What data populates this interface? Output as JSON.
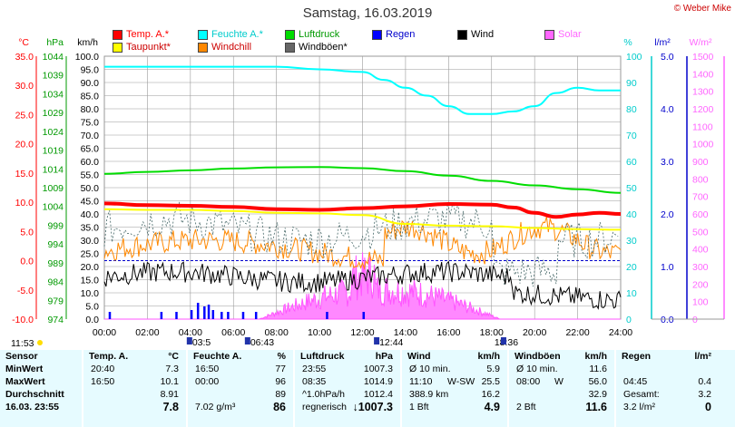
{
  "title": "Samstag, 16.03.2019",
  "copyright": "© Weber Mike",
  "legend": [
    {
      "label": "Temp. A.*",
      "color": "#ff0000",
      "text_color": "#ff0000"
    },
    {
      "label": "Feuchte A.*",
      "color": "#00ffff",
      "text_color": "#00cccc"
    },
    {
      "label": "Luftdruck",
      "color": "#00dd00",
      "text_color": "#009900"
    },
    {
      "label": "Regen",
      "color": "#0000ff",
      "text_color": "#0000cc"
    },
    {
      "label": "Wind",
      "color": "#000000",
      "text_color": "#000000"
    },
    {
      "label": "Solar",
      "color": "#ff66ff",
      "text_color": "#ff66ff"
    },
    {
      "label": "Taupunkt*",
      "color": "#ffff00",
      "text_color": "#cc0000"
    },
    {
      "label": "Windchill",
      "color": "#ff8800",
      "text_color": "#cc0000"
    },
    {
      "label": "Windböen*",
      "color": "#666666",
      "text_color": "#000000"
    }
  ],
  "axes": {
    "temp": {
      "unit": "°C",
      "ticks": [
        "35.0",
        "30.0",
        "25.0",
        "20.0",
        "15.0",
        "10.0",
        "5.0",
        "0.0",
        "-5.0",
        "-10.0"
      ],
      "color": "#ff0000"
    },
    "hpa": {
      "unit": "hPa",
      "ticks": [
        "1044",
        "1039",
        "1034",
        "1029",
        "1024",
        "1019",
        "1014",
        "1009",
        "1004",
        "999",
        "994",
        "989",
        "984",
        "979",
        "974"
      ],
      "color": "#009900"
    },
    "kmh": {
      "unit": "km/h",
      "ticks": [
        "100.0",
        "95.0",
        "90.0",
        "85.0",
        "80.0",
        "75.0",
        "70.0",
        "65.0",
        "60.0",
        "55.0",
        "50.0",
        "45.0",
        "40.0",
        "35.0",
        "30.0",
        "25.0",
        "20.0",
        "15.0",
        "10.0",
        "5.0",
        "0.0"
      ],
      "color": "#000000"
    },
    "pct": {
      "unit": "%",
      "ticks": [
        "100",
        "90",
        "80",
        "70",
        "60",
        "50",
        "40",
        "30",
        "20",
        "10",
        "0"
      ],
      "color": "#00cccc"
    },
    "rain": {
      "unit": "l/m²",
      "ticks": [
        "5.0",
        "4.0",
        "3.0",
        "2.0",
        "1.0",
        "0.0"
      ],
      "color": "#0000cc"
    },
    "solar": {
      "unit": "W/m²",
      "ticks": [
        "1500",
        "1400",
        "1300",
        "1200",
        "1100",
        "1000",
        "900",
        "800",
        "700",
        "600",
        "500",
        "400",
        "300",
        "200",
        "100",
        "0"
      ],
      "color": "#ff66ff"
    },
    "x_ticks": [
      "00:00",
      "02:00",
      "04:00",
      "06:00",
      "08:00",
      "10:00",
      "12:00",
      "14:00",
      "16:00",
      "18:00",
      "20:00",
      "22:00",
      "24:00"
    ]
  },
  "time_markers": {
    "sunrise_label": "11:53",
    "marks": [
      "03:5",
      "06:43",
      "12:44",
      "18:36"
    ]
  },
  "chart_data": {
    "type": "line",
    "x_unit": "hour",
    "xlim": [
      0,
      24
    ],
    "series": [
      {
        "name": "Temp. A.*",
        "axis": "temp",
        "color": "#ff0000",
        "width": 4,
        "x": [
          0,
          2,
          4,
          6,
          8,
          10,
          12,
          14,
          16,
          18,
          19,
          20,
          21,
          22,
          23,
          24
        ],
        "y": [
          9.8,
          9.5,
          9.4,
          9.2,
          8.8,
          8.7,
          9.0,
          9.3,
          9.7,
          9.6,
          9.1,
          8.2,
          7.5,
          7.9,
          8.2,
          8.0
        ]
      },
      {
        "name": "Feuchte A.*",
        "axis": "pct",
        "color": "#00ffff",
        "width": 2,
        "x": [
          0,
          2,
          4,
          6,
          8,
          10,
          12,
          13,
          14,
          15,
          16,
          17,
          18,
          19,
          20,
          21,
          22,
          23,
          24
        ],
        "y": [
          96,
          96,
          96,
          96,
          96,
          95,
          94,
          91,
          88,
          85,
          81,
          78,
          78,
          79,
          81,
          86,
          88,
          87,
          87
        ],
        "label": "Feuchte A.*"
      },
      {
        "name": "Luftdruck",
        "axis": "hpa",
        "color": "#00dd00",
        "width": 2,
        "x": [
          0,
          2,
          4,
          6,
          8,
          10,
          12,
          14,
          16,
          18,
          20,
          22,
          24
        ],
        "y": [
          1012.7,
          1013.2,
          1013.6,
          1014.1,
          1014.4,
          1014.5,
          1014.2,
          1013.4,
          1012.2,
          1010.8,
          1009.6,
          1008.6,
          1007.6
        ]
      },
      {
        "name": "Taupunkt*",
        "axis": "temp",
        "color": "#ffff00",
        "width": 2,
        "x": [
          0,
          2,
          4,
          6,
          8,
          10,
          12,
          14,
          16,
          18,
          20,
          22,
          24
        ],
        "y": [
          8.8,
          8.7,
          8.7,
          8.5,
          8.2,
          8.1,
          7.8,
          6.3,
          6.0,
          5.9,
          5.6,
          5.4,
          5.3
        ]
      }
    ]
  },
  "stats": {
    "sensor": {
      "header": "Sensor",
      "rows": [
        "MinWert",
        "MaxWert",
        "Durchschnitt",
        "16.03. 23:55"
      ]
    },
    "temp": {
      "header": "Temp. A.",
      "unit": "°C",
      "rows": [
        [
          "20:40",
          "7.3"
        ],
        [
          "16:50",
          "10.1"
        ],
        [
          "",
          "8.91"
        ],
        [
          "",
          "7.8"
        ]
      ]
    },
    "feuchte": {
      "header": "Feuchte A.",
      "unit": "%",
      "rows": [
        [
          "16:50",
          "77"
        ],
        [
          "00:00",
          "96"
        ],
        [
          "",
          "89"
        ],
        [
          "7.02 g/m³",
          "86"
        ]
      ]
    },
    "luftdruck": {
      "header": "Luftdruck",
      "unit": "hPa",
      "rows": [
        [
          "23:55",
          "1007.3"
        ],
        [
          "08:35",
          "1014.9"
        ],
        [
          "^1.0hPa/h",
          "1012.4"
        ],
        [
          "regnerisch",
          "↓1007.3"
        ]
      ]
    },
    "wind": {
      "header": "Wind",
      "unit": "km/h",
      "rows": [
        [
          "Ø 10 min.",
          "",
          "5.9"
        ],
        [
          "11:10",
          "W-SW",
          "25.5"
        ],
        [
          "388.9 km",
          "",
          "16.2"
        ],
        [
          "1 Bft",
          "",
          "4.9"
        ]
      ]
    },
    "windboeen": {
      "header": "Windböen",
      "unit": "km/h",
      "rows": [
        [
          "Ø 10 min.",
          "",
          "11.6"
        ],
        [
          "08:00",
          "W",
          "56.0"
        ],
        [
          "",
          "",
          "32.9"
        ],
        [
          "2 Bft",
          "",
          "11.6"
        ]
      ]
    },
    "regen": {
      "header": "Regen",
      "unit": "l/m²",
      "rows": [
        [
          "",
          ""
        ],
        [
          "04:45",
          "0.4"
        ],
        [
          "Gesamt:",
          "3.2"
        ],
        [
          "3.2 l/m²",
          "0"
        ]
      ]
    }
  }
}
